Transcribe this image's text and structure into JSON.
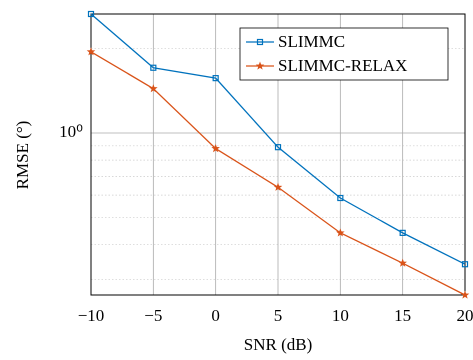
{
  "chart_data": {
    "type": "line",
    "xlabel": "SNR (dB)",
    "ylabel": "RMSE (°)",
    "log_y": true,
    "grid": true,
    "legend": "upper right",
    "x": [
      -10,
      -5,
      0,
      5,
      10,
      15,
      20
    ],
    "series": [
      {
        "name": "SLIMMC",
        "color": "#0072bd",
        "marker": "square",
        "values": [
          2.66,
          1.71,
          1.57,
          0.89,
          0.586,
          0.44,
          0.34
        ]
      },
      {
        "name": "SLIMMC-RELAX",
        "color": "#d95319",
        "marker": "star",
        "values": [
          1.95,
          1.44,
          0.88,
          0.64,
          0.44,
          0.343,
          0.264
        ]
      }
    ],
    "xlim": [
      -10,
      20
    ],
    "xticks": [
      {
        "value": -10,
        "label": "−10"
      },
      {
        "value": -5,
        "label": "−5"
      },
      0,
      5,
      10,
      15,
      20
    ],
    "ylim": [
      0.264,
      2.66
    ],
    "yticks": [
      {
        "value": 1,
        "label": "10⁰"
      }
    ],
    "yminorticks": [
      0.3,
      0.4,
      0.5,
      0.6,
      0.7,
      0.8,
      0.9,
      2
    ]
  }
}
